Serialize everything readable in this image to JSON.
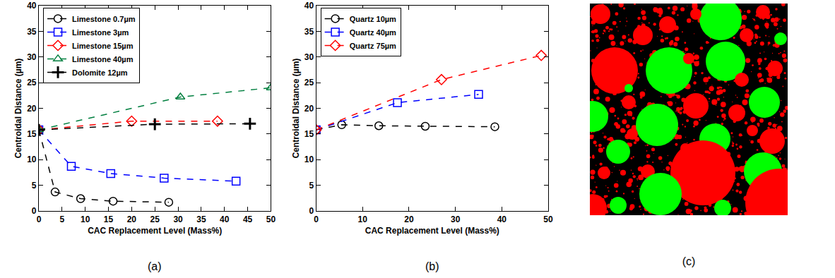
{
  "chart_data": [
    {
      "type": "line",
      "annotation": "(a)",
      "x_label": "CAC Replacement Level (Mass%)",
      "y_label": "Centroidal Distance (µm)",
      "xlim": [
        0,
        50
      ],
      "xticks": [
        0,
        5,
        10,
        15,
        20,
        25,
        30,
        35,
        40,
        45,
        50
      ],
      "ylim": [
        0,
        40
      ],
      "yticks": [
        0,
        5,
        10,
        15,
        20,
        25,
        30,
        35,
        40
      ],
      "grid": false,
      "legend": "top left",
      "line_style": "dash",
      "series": [
        {
          "name": "Limestone 0.7µm",
          "color": "#000000",
          "marker": "circle",
          "x": [
            0,
            3.5,
            9,
            16,
            28
          ],
          "values": [
            15.8,
            3.7,
            2.4,
            1.9,
            1.7
          ]
        },
        {
          "name": "Limestone 3µm",
          "color": "#0000ff",
          "marker": "square",
          "x": [
            0,
            7,
            15.5,
            27,
            42.5
          ],
          "values": [
            15.8,
            8.7,
            7.3,
            6.4,
            5.8
          ]
        },
        {
          "name": "Limestone 15µm",
          "color": "#ff0000",
          "marker": "diamond",
          "x": [
            0,
            20,
            38.5
          ],
          "values": [
            15.8,
            17.5,
            17.5
          ]
        },
        {
          "name": "Limestone 40µm",
          "color": "#007f3f",
          "marker": "triangle",
          "x": [
            0,
            30.5,
            50
          ],
          "values": [
            15.8,
            22.2,
            24.0
          ]
        },
        {
          "name": "Dolomite 12µm",
          "color": "#000000",
          "marker": "plus",
          "x": [
            0,
            25,
            45.5
          ],
          "values": [
            15.8,
            16.9,
            17.0
          ]
        }
      ]
    },
    {
      "type": "line",
      "annotation": "(b)",
      "x_label": "CAC Replacement Level (Mass%)",
      "y_label": "Centroidal Distance (µm)",
      "xlim": [
        0,
        50
      ],
      "xticks": [
        0,
        10,
        20,
        30,
        40,
        50
      ],
      "ylim": [
        0,
        40
      ],
      "yticks": [
        0,
        5,
        10,
        15,
        20,
        25,
        30,
        35,
        40
      ],
      "grid": false,
      "legend": "top left",
      "line_style": "dash",
      "series": [
        {
          "name": "Quartz 10µm",
          "color": "#000000",
          "marker": "circle",
          "x": [
            0,
            5.5,
            13.5,
            23.5,
            38.5
          ],
          "values": [
            15.8,
            16.8,
            16.6,
            16.5,
            16.4
          ]
        },
        {
          "name": "Quartz 40µm",
          "color": "#0000ff",
          "marker": "square",
          "x": [
            0,
            17.5,
            35
          ],
          "values": [
            15.8,
            21.1,
            22.7
          ]
        },
        {
          "name": "Quartz 75µm",
          "color": "#ff0000",
          "marker": "diamond",
          "x": [
            0,
            27,
            48.5
          ],
          "values": [
            15.8,
            25.6,
            30.3
          ]
        }
      ]
    }
  ],
  "image_panel": {
    "annotation": "(c)"
  }
}
